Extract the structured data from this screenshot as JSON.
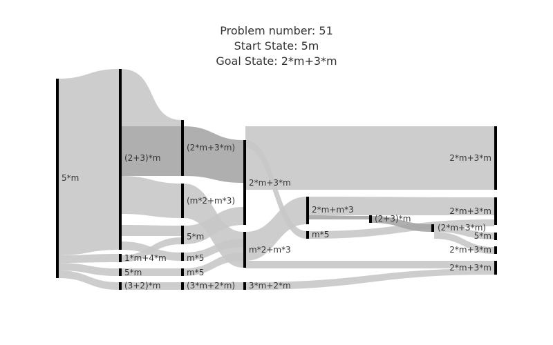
{
  "title": {
    "line1": "Problem number: 51",
    "line2": "Start State: 5m",
    "line3": "Goal State: 2*m+3*m"
  },
  "colors": {
    "link": "#c8c8c8",
    "link_highlight": "#a0a0a0",
    "node": "#000000",
    "text": "#333333"
  },
  "nodes": [
    {
      "id": "n0",
      "label": "5*m",
      "column": 0
    },
    {
      "id": "n1",
      "label": "(2+3)*m",
      "column": 1
    },
    {
      "id": "n2",
      "label": "1*m+4*m",
      "column": 1
    },
    {
      "id": "n3",
      "label": "5*m",
      "column": 1
    },
    {
      "id": "n4",
      "label": "(3+2)*m",
      "column": 1
    },
    {
      "id": "n5",
      "label": "(2*m+3*m)",
      "column": 2
    },
    {
      "id": "n6",
      "label": "(m*2+m*3)",
      "column": 2
    },
    {
      "id": "n7",
      "label": "5*m",
      "column": 2
    },
    {
      "id": "n8",
      "label": "m*5",
      "column": 2
    },
    {
      "id": "n9",
      "label": "m*5",
      "column": 2
    },
    {
      "id": "n10",
      "label": "(3*m+2*m)",
      "column": 2
    },
    {
      "id": "n11",
      "label": "2*m+3*m",
      "column": 3
    },
    {
      "id": "n12",
      "label": "m*2+m*3",
      "column": 3
    },
    {
      "id": "n13",
      "label": "3*m+2*m",
      "column": 3
    },
    {
      "id": "n14",
      "label": "2*m+m*3",
      "column": 4
    },
    {
      "id": "n15",
      "label": "m*5",
      "column": 4
    },
    {
      "id": "n16",
      "label": "(2+3)*m",
      "column": 5
    },
    {
      "id": "n17",
      "label": "(2*m+3*m)",
      "column": 6
    },
    {
      "id": "n18",
      "label": "2*m+3*m",
      "column": 7
    },
    {
      "id": "n19",
      "label": "2*m+3*m",
      "column": 7
    },
    {
      "id": "n20",
      "label": "5*m",
      "column": 7
    },
    {
      "id": "n21",
      "label": "2*m+3*m",
      "column": 7
    },
    {
      "id": "n22",
      "label": "2*m+3*m",
      "column": 7
    }
  ]
}
